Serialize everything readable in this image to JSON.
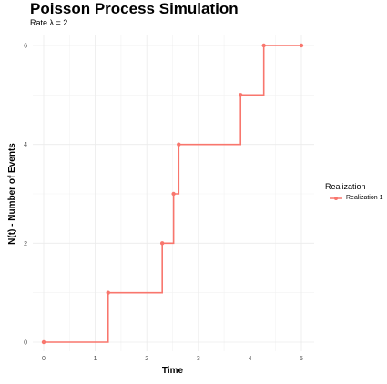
{
  "chart_data": {
    "type": "line",
    "step": true,
    "title": "Poisson Process Simulation",
    "subtitle": "Rate λ = 2",
    "xlabel": "Time",
    "ylabel": "N(t) - Number of Events",
    "xlim": [
      0,
      5
    ],
    "ylim": [
      0,
      6
    ],
    "x_ticks": [
      0,
      1,
      2,
      3,
      4,
      5
    ],
    "y_ticks": [
      0,
      2,
      4,
      6
    ],
    "grid": true,
    "legend": {
      "title": "Realization",
      "position": "right"
    },
    "series": [
      {
        "name": "Realization 1",
        "color": "#F8766D",
        "x": [
          0,
          1.25,
          2.3,
          2.52,
          2.62,
          3.82,
          4.27,
          5.0
        ],
        "y": [
          0,
          1,
          2,
          3,
          4,
          5,
          6,
          6
        ]
      }
    ]
  }
}
